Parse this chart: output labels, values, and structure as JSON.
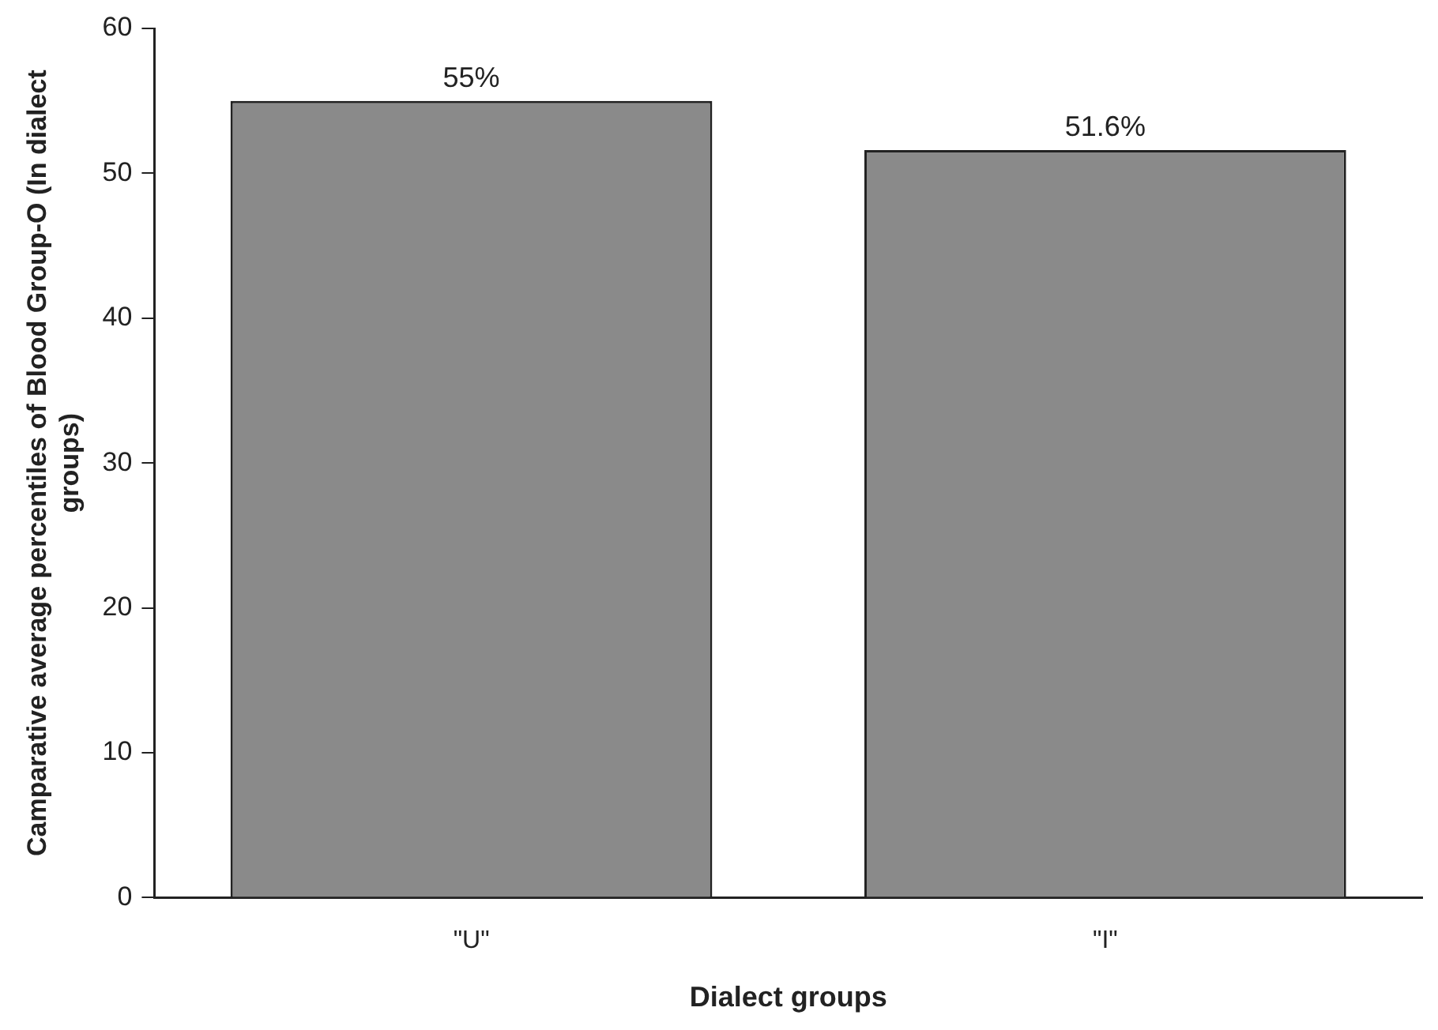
{
  "chart_data": {
    "type": "bar",
    "categories": [
      "\"U\"",
      "\"I\""
    ],
    "values": [
      55,
      51.6
    ],
    "value_labels": [
      "55%",
      "51.6%"
    ],
    "color": "#8a8a8a",
    "xlabel": "Dialect groups",
    "ylabel": "Camparative average percentiles of Blood Group-O (In dialect groups)",
    "ylim": [
      0,
      60
    ],
    "yticks": [
      0,
      10,
      20,
      30,
      40,
      50,
      60
    ],
    "grid": false,
    "legend": false
  }
}
